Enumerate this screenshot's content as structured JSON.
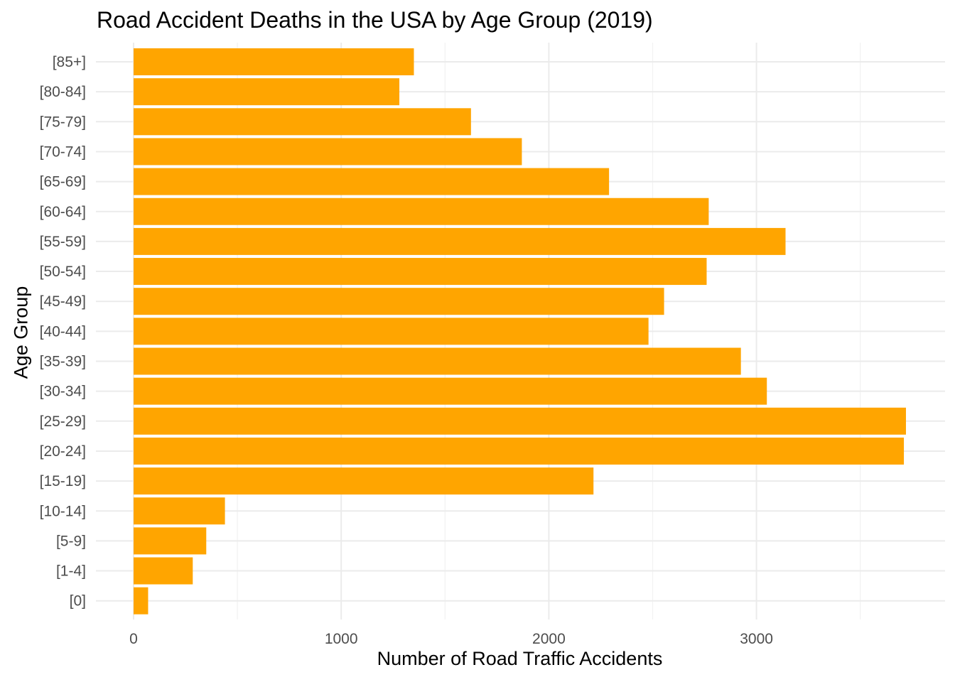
{
  "chart_data": {
    "type": "bar",
    "orientation": "horizontal",
    "title": "Road Accident Deaths in the USA by Age Group (2019)",
    "xlabel": "Number of Road Traffic Accidents",
    "ylabel": "Age Group",
    "categories": [
      "[0]",
      "[1-4]",
      "[5-9]",
      "[10-14]",
      "[15-19]",
      "[20-24]",
      "[25-29]",
      "[30-34]",
      "[35-39]",
      "[40-44]",
      "[45-49]",
      "[50-54]",
      "[55-59]",
      "[60-64]",
      "[65-69]",
      "[70-74]",
      "[75-79]",
      "[80-84]",
      "[85+]"
    ],
    "values": [
      70,
      285,
      350,
      440,
      2215,
      3710,
      3720,
      3050,
      2925,
      2480,
      2555,
      2760,
      3140,
      2770,
      2290,
      1870,
      1625,
      1280,
      1350
    ],
    "xlim": [
      -185,
      3720
    ],
    "xticks": [
      0,
      1000,
      2000,
      3000
    ],
    "xtick_labels": [
      "0",
      "1000",
      "2000",
      "3000"
    ],
    "bar_color": "#FFA500",
    "grid": true,
    "legend": "none"
  }
}
